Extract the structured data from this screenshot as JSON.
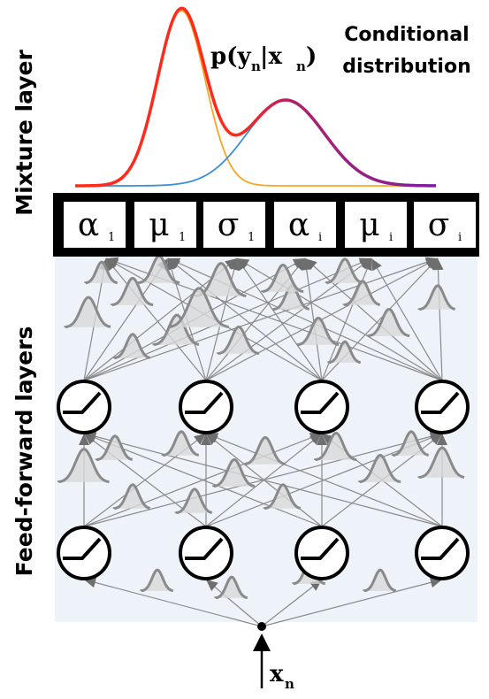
{
  "labels": {
    "mixture_layer": "Mixture layer",
    "feedforward_layers": "Feed-forward layers",
    "conditional_line1": "Conditional",
    "conditional_line2": "distribution"
  },
  "equation": {
    "p": "p(y",
    "y_sub": "n",
    "bar": "|x",
    "x_sub": "n",
    "close": ")"
  },
  "input": {
    "x": "x",
    "x_sub": "n"
  },
  "params": [
    {
      "symbol": "α",
      "sub": "1"
    },
    {
      "symbol": "μ",
      "sub": "1"
    },
    {
      "symbol": "σ",
      "sub": "1"
    },
    {
      "symbol": "α",
      "sub": "i"
    },
    {
      "symbol": "μ",
      "sub": "i"
    },
    {
      "symbol": "σ",
      "sub": "i"
    }
  ],
  "colors": {
    "component1": "#f5a623",
    "component2": "#3a8fd6",
    "mixture_left": "#ff2a1a",
    "mixture_right": "#7a1fa0",
    "panel_bg": "#eef2f9",
    "edge": "#8a8a8a",
    "gauss": "#8a8a8a"
  },
  "icons": {
    "neuron": "relu-neuron-icon",
    "weight": "gaussian-weight-icon"
  }
}
